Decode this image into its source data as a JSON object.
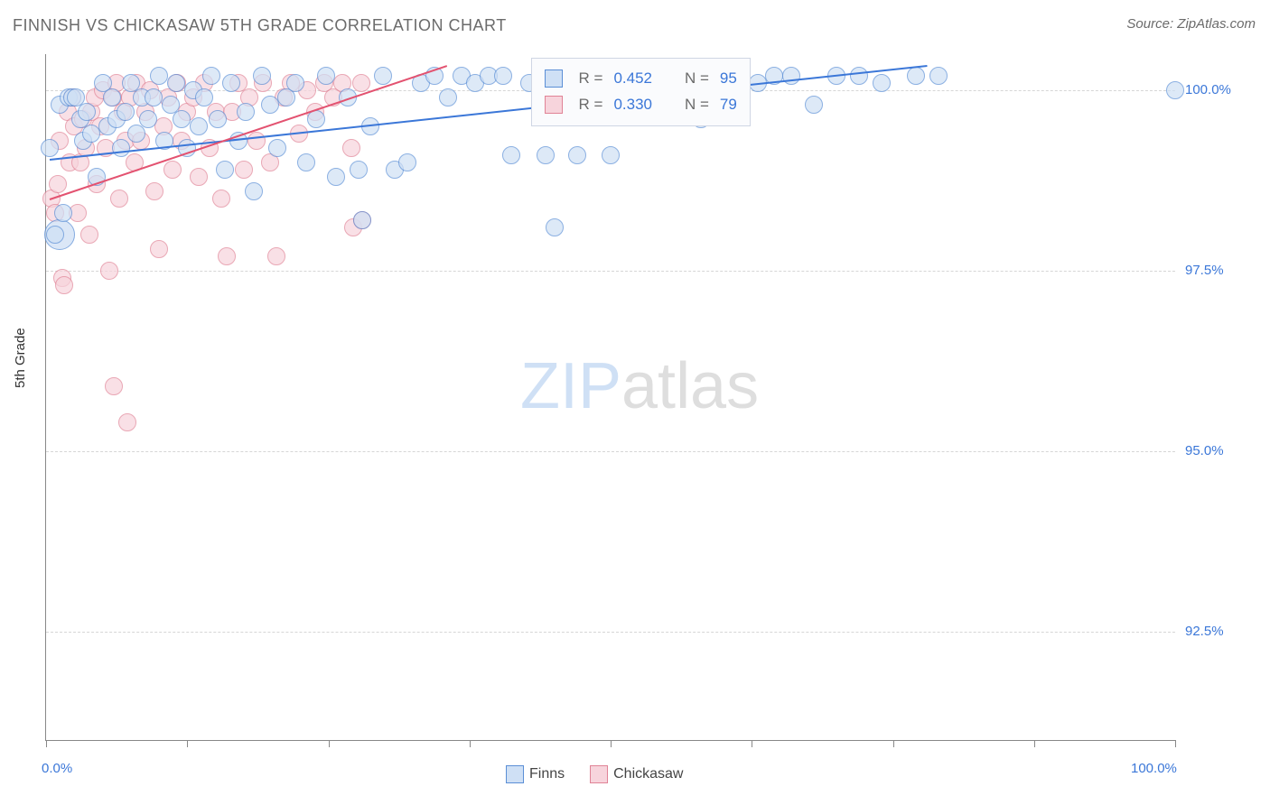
{
  "title": "FINNISH VS CHICKASAW 5TH GRADE CORRELATION CHART",
  "source_prefix": "Source: ",
  "source_name": "ZipAtlas.com",
  "y_axis_title": "5th Grade",
  "watermark": {
    "zip": "ZIP",
    "atlas": "atlas",
    "color_zip": "#cfe0f5",
    "color_atlas": "#dedede"
  },
  "chart": {
    "type": "scatter",
    "xlim": [
      0,
      100
    ],
    "ylim": [
      91.0,
      100.5
    ],
    "y_ticks": [
      92.5,
      95.0,
      97.5,
      100.0
    ],
    "y_tick_labels": [
      "92.5%",
      "95.0%",
      "97.5%",
      "100.0%"
    ],
    "x_ticks": [
      0,
      12.5,
      25,
      37.5,
      50,
      62.5,
      75,
      87.5,
      100
    ],
    "x_tick_labels_shown": {
      "0": "0.0%",
      "100": "100.0%"
    },
    "point_radius": 9,
    "series": [
      {
        "name": "Finns",
        "fill": "#cfe0f5",
        "stroke": "#5b8fd6",
        "trend_color": "#3b77d8",
        "trend": {
          "x1": 0.3,
          "y1": 99.05,
          "x2": 78,
          "y2": 100.35
        },
        "corr": {
          "R": "0.452",
          "N": "95"
        },
        "points": [
          [
            0.3,
            99.2
          ],
          [
            0.8,
            98.0
          ],
          [
            1.2,
            99.8
          ],
          [
            1.5,
            98.3
          ],
          [
            2,
            99.9
          ],
          [
            2.3,
            99.9
          ],
          [
            2.6,
            99.9
          ],
          [
            3,
            99.6
          ],
          [
            3.3,
            99.3
          ],
          [
            3.6,
            99.7
          ],
          [
            4,
            99.4
          ],
          [
            4.5,
            98.8
          ],
          [
            5,
            100.1
          ],
          [
            5.4,
            99.5
          ],
          [
            5.8,
            99.9
          ],
          [
            6.2,
            99.6
          ],
          [
            6.6,
            99.2
          ],
          [
            7,
            99.7
          ],
          [
            7.5,
            100.1
          ],
          [
            8,
            99.4
          ],
          [
            8.5,
            99.9
          ],
          [
            9,
            99.6
          ],
          [
            9.5,
            99.9
          ],
          [
            10,
            100.2
          ],
          [
            10.5,
            99.3
          ],
          [
            11,
            99.8
          ],
          [
            11.5,
            100.1
          ],
          [
            12,
            99.6
          ],
          [
            12.5,
            99.2
          ],
          [
            13,
            100.0
          ],
          [
            13.5,
            99.5
          ],
          [
            14,
            99.9
          ],
          [
            14.6,
            100.2
          ],
          [
            15.2,
            99.6
          ],
          [
            15.8,
            98.9
          ],
          [
            16.4,
            100.1
          ],
          [
            17,
            99.3
          ],
          [
            17.7,
            99.7
          ],
          [
            18.4,
            98.6
          ],
          [
            19.1,
            100.2
          ],
          [
            19.8,
            99.8
          ],
          [
            20.5,
            99.2
          ],
          [
            21.3,
            99.9
          ],
          [
            22.1,
            100.1
          ],
          [
            23,
            99.0
          ],
          [
            23.9,
            99.6
          ],
          [
            24.8,
            100.2
          ],
          [
            25.7,
            98.8
          ],
          [
            26.7,
            99.9
          ],
          [
            27.7,
            98.9
          ],
          [
            28,
            98.2
          ],
          [
            28.7,
            99.5
          ],
          [
            29.8,
            100.2
          ],
          [
            30.9,
            98.9
          ],
          [
            32,
            99.0
          ],
          [
            33.2,
            100.1
          ],
          [
            34.4,
            100.2
          ],
          [
            35.6,
            99.9
          ],
          [
            36.8,
            100.2
          ],
          [
            38,
            100.1
          ],
          [
            39.2,
            100.2
          ],
          [
            40.5,
            100.2
          ],
          [
            41.2,
            99.1
          ],
          [
            42.8,
            100.1
          ],
          [
            44.2,
            99.1
          ],
          [
            45,
            98.1
          ],
          [
            45.6,
            100.2
          ],
          [
            47,
            99.1
          ],
          [
            48.6,
            100.2
          ],
          [
            50,
            99.1
          ],
          [
            51.6,
            100.1
          ],
          [
            52.5,
            100.2
          ],
          [
            54,
            100.2
          ],
          [
            55,
            100.1
          ],
          [
            56.5,
            100.2
          ],
          [
            58,
            99.6
          ],
          [
            59.5,
            100.2
          ],
          [
            60,
            100.1
          ],
          [
            61.5,
            100.2
          ],
          [
            63,
            100.1
          ],
          [
            64.5,
            100.2
          ],
          [
            66,
            100.2
          ],
          [
            68,
            99.8
          ],
          [
            70,
            100.2
          ],
          [
            72,
            100.2
          ],
          [
            74,
            100.1
          ],
          [
            77,
            100.2
          ],
          [
            79,
            100.2
          ],
          [
            100,
            100.0
          ]
        ],
        "big_points": [
          [
            1.2,
            98.0,
            16
          ]
        ]
      },
      {
        "name": "Chickasaw",
        "fill": "#f7d4dc",
        "stroke": "#e08396",
        "trend_color": "#e35270",
        "trend": {
          "x1": 0.3,
          "y1": 98.5,
          "x2": 35.5,
          "y2": 100.35
        },
        "corr": {
          "R": "0.330",
          "N": "79"
        },
        "points": [
          [
            0.5,
            98.5
          ],
          [
            0.8,
            98.3
          ],
          [
            1,
            98.7
          ],
          [
            1.2,
            99.3
          ],
          [
            1.4,
            97.4
          ],
          [
            1.6,
            97.3
          ],
          [
            1.9,
            99.7
          ],
          [
            2.1,
            99.0
          ],
          [
            2.3,
            99.9
          ],
          [
            2.5,
            99.5
          ],
          [
            2.8,
            98.3
          ],
          [
            3,
            99.0
          ],
          [
            3.3,
            99.6
          ],
          [
            3.5,
            99.2
          ],
          [
            3.8,
            98.0
          ],
          [
            4,
            99.7
          ],
          [
            4.3,
            99.9
          ],
          [
            4.5,
            98.7
          ],
          [
            4.8,
            99.5
          ],
          [
            5,
            100.0
          ],
          [
            5.3,
            99.2
          ],
          [
            5.6,
            97.5
          ],
          [
            5.9,
            99.9
          ],
          [
            6,
            95.9
          ],
          [
            6.2,
            100.1
          ],
          [
            6.5,
            98.5
          ],
          [
            6.8,
            99.7
          ],
          [
            7,
            99.3
          ],
          [
            7.2,
            95.4
          ],
          [
            7.4,
            99.9
          ],
          [
            7.8,
            99.0
          ],
          [
            8,
            100.1
          ],
          [
            8.4,
            99.3
          ],
          [
            8.8,
            99.7
          ],
          [
            9.2,
            100.0
          ],
          [
            9.6,
            98.6
          ],
          [
            10,
            97.8
          ],
          [
            10.4,
            99.5
          ],
          [
            10.8,
            99.9
          ],
          [
            11.2,
            98.9
          ],
          [
            11.6,
            100.1
          ],
          [
            12,
            99.3
          ],
          [
            12.5,
            99.7
          ],
          [
            13,
            99.9
          ],
          [
            13.5,
            98.8
          ],
          [
            14,
            100.1
          ],
          [
            14.5,
            99.2
          ],
          [
            15,
            99.7
          ],
          [
            15.5,
            98.5
          ],
          [
            16,
            97.7
          ],
          [
            16.5,
            99.7
          ],
          [
            17,
            100.1
          ],
          [
            17.5,
            98.9
          ],
          [
            18,
            99.9
          ],
          [
            18.6,
            99.3
          ],
          [
            19.2,
            100.1
          ],
          [
            19.8,
            99.0
          ],
          [
            20.4,
            97.7
          ],
          [
            21,
            99.9
          ],
          [
            21.7,
            100.1
          ],
          [
            22.4,
            99.4
          ],
          [
            23.1,
            100.0
          ],
          [
            23.8,
            99.7
          ],
          [
            24.6,
            100.1
          ],
          [
            25.4,
            99.9
          ],
          [
            26.2,
            100.1
          ],
          [
            27,
            99.2
          ],
          [
            27.2,
            98.1
          ],
          [
            27.9,
            100.1
          ],
          [
            28,
            98.2
          ]
        ],
        "big_points": []
      }
    ]
  },
  "legend": {
    "items": [
      {
        "label": "Finns",
        "fill": "#cfe0f5",
        "stroke": "#5b8fd6"
      },
      {
        "label": "Chickasaw",
        "fill": "#f7d4dc",
        "stroke": "#e08396"
      }
    ]
  }
}
